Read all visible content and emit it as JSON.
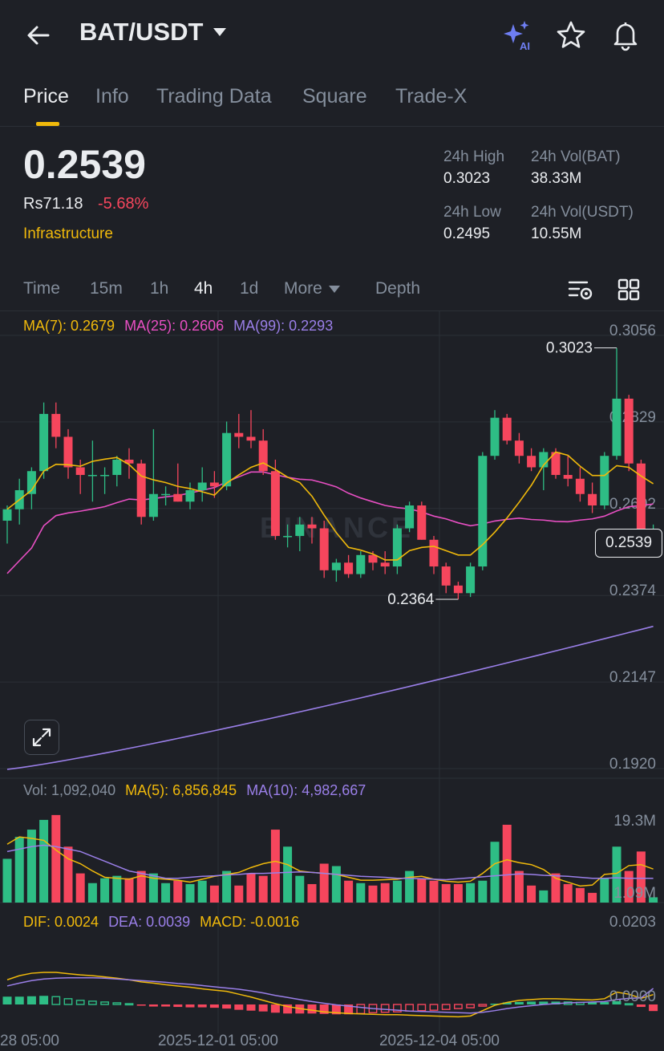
{
  "header": {
    "pair": "BAT/USDT"
  },
  "tabs": [
    {
      "label": "Price",
      "active": true
    },
    {
      "label": "Info",
      "active": false
    },
    {
      "label": "Trading Data",
      "active": false
    },
    {
      "label": "Square",
      "active": false
    },
    {
      "label": "Trade-X",
      "active": false
    }
  ],
  "price": {
    "last": "0.2539",
    "fiat": "Rs71.18",
    "change_pct": "-5.68%",
    "category": "Infrastructure"
  },
  "stats": {
    "high_label": "24h High",
    "high_value": "0.3023",
    "vol_base_label": "24h Vol(BAT)",
    "vol_base_value": "38.33M",
    "low_label": "24h Low",
    "low_value": "0.2495",
    "vol_quote_label": "24h Vol(USDT)",
    "vol_quote_value": "10.55M"
  },
  "intervals": {
    "time": "Time",
    "m15": "15m",
    "h1": "1h",
    "h4": "4h",
    "d1": "1d",
    "more": "More",
    "depth": "Depth",
    "active": "4h"
  },
  "ma_legend": {
    "ma7": "MA(7): 0.2679",
    "ma25": "MA(25): 0.2606",
    "ma99": "MA(99): 0.2293"
  },
  "vol_legend": {
    "vol": "Vol: 1,092,040",
    "ma5": "MA(5): 6,856,845",
    "ma10": "MA(10): 4,982,667"
  },
  "macd_legend": {
    "dif": "DIF: 0.0024",
    "dea": "DEA: 0.0039",
    "macd": "MACD: -0.0016"
  },
  "current_price_label": "0.2539",
  "colors": {
    "up": "#2ebd85",
    "down": "#f6465d",
    "ma7": "#f0b90b",
    "ma25": "#e84fc3",
    "ma99": "#9a7fe8",
    "accent": "#f0b90b"
  },
  "chart_data": {
    "type": "candlestick",
    "price_axis": [
      "0.3056",
      "0.2829",
      "0.2602",
      "0.2374",
      "0.2147",
      "0.1920"
    ],
    "price_range": [
      0.192,
      0.3056
    ],
    "high_marker": "0.3023",
    "low_marker": "0.2364",
    "watermark": "BINANCE",
    "volume_axis": [
      "19.3M",
      "1.09M"
    ],
    "volume_range_millions": [
      0,
      19.3
    ],
    "macd_axis": [
      "0.0203",
      "0.0000"
    ],
    "x_labels": [
      "28 05:00",
      "2025-12-01 05:00",
      "2025-12-04 05:00"
    ],
    "candles": [
      {
        "o": 0.257,
        "h": 0.261,
        "l": 0.251,
        "c": 0.26
      },
      {
        "o": 0.26,
        "h": 0.268,
        "l": 0.256,
        "c": 0.265
      },
      {
        "o": 0.264,
        "h": 0.271,
        "l": 0.26,
        "c": 0.27
      },
      {
        "o": 0.27,
        "h": 0.288,
        "l": 0.268,
        "c": 0.285
      },
      {
        "o": 0.285,
        "h": 0.288,
        "l": 0.276,
        "c": 0.279
      },
      {
        "o": 0.279,
        "h": 0.281,
        "l": 0.268,
        "c": 0.271
      },
      {
        "o": 0.271,
        "h": 0.273,
        "l": 0.264,
        "c": 0.269
      },
      {
        "o": 0.269,
        "h": 0.278,
        "l": 0.262,
        "c": 0.269
      },
      {
        "o": 0.269,
        "h": 0.271,
        "l": 0.264,
        "c": 0.269
      },
      {
        "o": 0.269,
        "h": 0.274,
        "l": 0.266,
        "c": 0.273
      },
      {
        "o": 0.273,
        "h": 0.276,
        "l": 0.268,
        "c": 0.272
      },
      {
        "o": 0.272,
        "h": 0.273,
        "l": 0.256,
        "c": 0.258
      },
      {
        "o": 0.258,
        "h": 0.281,
        "l": 0.257,
        "c": 0.264
      },
      {
        "o": 0.264,
        "h": 0.266,
        "l": 0.261,
        "c": 0.264
      },
      {
        "o": 0.264,
        "h": 0.272,
        "l": 0.262,
        "c": 0.262
      },
      {
        "o": 0.262,
        "h": 0.267,
        "l": 0.26,
        "c": 0.265
      },
      {
        "o": 0.265,
        "h": 0.271,
        "l": 0.262,
        "c": 0.267
      },
      {
        "o": 0.267,
        "h": 0.27,
        "l": 0.263,
        "c": 0.266
      },
      {
        "o": 0.266,
        "h": 0.283,
        "l": 0.265,
        "c": 0.28
      },
      {
        "o": 0.28,
        "h": 0.285,
        "l": 0.276,
        "c": 0.279
      },
      {
        "o": 0.279,
        "h": 0.286,
        "l": 0.276,
        "c": 0.278
      },
      {
        "o": 0.278,
        "h": 0.281,
        "l": 0.269,
        "c": 0.27
      },
      {
        "o": 0.27,
        "h": 0.273,
        "l": 0.252,
        "c": 0.253
      },
      {
        "o": 0.253,
        "h": 0.256,
        "l": 0.25,
        "c": 0.253
      },
      {
        "o": 0.253,
        "h": 0.258,
        "l": 0.249,
        "c": 0.256
      },
      {
        "o": 0.256,
        "h": 0.258,
        "l": 0.251,
        "c": 0.255
      },
      {
        "o": 0.255,
        "h": 0.257,
        "l": 0.242,
        "c": 0.244
      },
      {
        "o": 0.244,
        "h": 0.247,
        "l": 0.241,
        "c": 0.246
      },
      {
        "o": 0.246,
        "h": 0.248,
        "l": 0.242,
        "c": 0.243
      },
      {
        "o": 0.243,
        "h": 0.249,
        "l": 0.242,
        "c": 0.248
      },
      {
        "o": 0.248,
        "h": 0.249,
        "l": 0.244,
        "c": 0.246
      },
      {
        "o": 0.246,
        "h": 0.249,
        "l": 0.243,
        "c": 0.245
      },
      {
        "o": 0.245,
        "h": 0.256,
        "l": 0.243,
        "c": 0.255
      },
      {
        "o": 0.255,
        "h": 0.262,
        "l": 0.254,
        "c": 0.261
      },
      {
        "o": 0.261,
        "h": 0.262,
        "l": 0.252,
        "c": 0.252
      },
      {
        "o": 0.252,
        "h": 0.253,
        "l": 0.243,
        "c": 0.245
      },
      {
        "o": 0.245,
        "h": 0.246,
        "l": 0.238,
        "c": 0.24
      },
      {
        "o": 0.24,
        "h": 0.241,
        "l": 0.2364,
        "c": 0.238
      },
      {
        "o": 0.238,
        "h": 0.246,
        "l": 0.237,
        "c": 0.245
      },
      {
        "o": 0.245,
        "h": 0.275,
        "l": 0.244,
        "c": 0.274
      },
      {
        "o": 0.274,
        "h": 0.286,
        "l": 0.273,
        "c": 0.284
      },
      {
        "o": 0.284,
        "h": 0.285,
        "l": 0.277,
        "c": 0.278
      },
      {
        "o": 0.278,
        "h": 0.28,
        "l": 0.272,
        "c": 0.274
      },
      {
        "o": 0.274,
        "h": 0.276,
        "l": 0.27,
        "c": 0.271
      },
      {
        "o": 0.271,
        "h": 0.276,
        "l": 0.265,
        "c": 0.275
      },
      {
        "o": 0.275,
        "h": 0.276,
        "l": 0.268,
        "c": 0.269
      },
      {
        "o": 0.269,
        "h": 0.274,
        "l": 0.266,
        "c": 0.268
      },
      {
        "o": 0.268,
        "h": 0.271,
        "l": 0.262,
        "c": 0.264
      },
      {
        "o": 0.264,
        "h": 0.267,
        "l": 0.259,
        "c": 0.261
      },
      {
        "o": 0.261,
        "h": 0.275,
        "l": 0.26,
        "c": 0.274
      },
      {
        "o": 0.274,
        "h": 0.3023,
        "l": 0.273,
        "c": 0.289
      },
      {
        "o": 0.289,
        "h": 0.29,
        "l": 0.27,
        "c": 0.272
      },
      {
        "o": 0.272,
        "h": 0.273,
        "l": 0.251,
        "c": 0.253
      },
      {
        "o": 0.253,
        "h": 0.256,
        "l": 0.252,
        "c": 0.2539
      }
    ],
    "volume_millions": [
      9.0,
      13.5,
      15.0,
      17.0,
      18.0,
      11.5,
      6.0,
      4.0,
      5.0,
      5.5,
      5.0,
      6.5,
      6.0,
      4.0,
      4.5,
      3.8,
      4.5,
      3.5,
      6.5,
      3.5,
      6.0,
      5.5,
      15.0,
      11.5,
      5.5,
      3.8,
      8.0,
      7.5,
      4.5,
      4.0,
      3.5,
      4.0,
      4.5,
      6.5,
      5.0,
      4.5,
      3.8,
      3.8,
      4.0,
      4.5,
      12.5,
      16.0,
      6.5,
      3.5,
      2.5,
      6.0,
      3.8,
      3.0,
      2.0,
      5.0,
      11.5,
      6.5,
      10.5,
      1.09
    ],
    "ma5_volume_millions": [
      12.0,
      13.5,
      13.2,
      12.8,
      10.8,
      9.0,
      8.0,
      6.5,
      5.2,
      5.0,
      4.8,
      5.5,
      5.0,
      4.8,
      4.6,
      4.2,
      4.8,
      5.4,
      5.8,
      6.2,
      7.2,
      8.0,
      8.5,
      7.8,
      6.5,
      6.2,
      6.0,
      5.8,
      5.2,
      4.6,
      4.6,
      4.7,
      4.8,
      5.2,
      5.4,
      4.8,
      4.4,
      4.2,
      4.4,
      6.0,
      8.0,
      8.8,
      8.2,
      7.8,
      6.8,
      5.0,
      4.2,
      3.4,
      3.6,
      5.8,
      6.0,
      7.6,
      7.8,
      6.9
    ],
    "ma10_volume_millions": [
      10.5,
      11.0,
      11.5,
      11.8,
      11.5,
      11.0,
      10.5,
      9.5,
      8.5,
      7.5,
      6.5,
      6.0,
      5.5,
      5.0,
      5.0,
      5.2,
      5.4,
      5.5,
      5.7,
      5.8,
      6.0,
      6.0,
      6.1,
      6.2,
      6.3,
      6.2,
      6.0,
      5.8,
      5.6,
      5.4,
      5.3,
      5.2,
      5.0,
      5.0,
      4.9,
      4.8,
      4.7,
      4.9,
      5.1,
      5.3,
      5.5,
      5.7,
      5.9,
      5.8,
      5.6,
      5.5,
      5.4,
      5.2,
      5.0,
      5.0,
      5.1,
      5.0,
      5.0,
      4.98
    ],
    "macd_hist": [
      0.0019,
      0.0019,
      0.002,
      0.0021,
      0.0019,
      0.0014,
      0.001,
      0.0008,
      0.0006,
      0.0004,
      0.0002,
      -0.0002,
      -0.0005,
      -0.0005,
      -0.0006,
      -0.0007,
      -0.0007,
      -0.0008,
      -0.001,
      -0.0013,
      -0.0015,
      -0.0017,
      -0.002,
      -0.0022,
      -0.0022,
      -0.0022,
      -0.0023,
      -0.0024,
      -0.0024,
      -0.0022,
      -0.002,
      -0.0019,
      -0.0018,
      -0.0016,
      -0.0015,
      -0.0014,
      -0.0012,
      -0.001,
      -0.0008,
      -0.0004,
      0.0002,
      0.0005,
      0.0006,
      0.0007,
      0.0007,
      0.0007,
      0.0006,
      0.0005,
      0.0005,
      0.0006,
      0.0008,
      0.0002,
      -0.0006,
      -0.0016
    ],
    "dif": [
      0.006,
      0.007,
      0.0076,
      0.0078,
      0.0078,
      0.0075,
      0.0072,
      0.007,
      0.0067,
      0.0064,
      0.006,
      0.0055,
      0.0052,
      0.0048,
      0.0045,
      0.0042,
      0.0038,
      0.0035,
      0.0032,
      0.0025,
      0.0018,
      0.001,
      0.0002,
      -0.0005,
      -0.001,
      -0.0014,
      -0.0018,
      -0.002,
      -0.0022,
      -0.0023,
      -0.0024,
      -0.0025,
      -0.0025,
      -0.0026,
      -0.0027,
      -0.0028,
      -0.0029,
      -0.003,
      -0.0028,
      -0.0015,
      -0.0002,
      0.0005,
      0.001,
      0.0012,
      0.0014,
      0.0014,
      0.0013,
      0.0012,
      0.0011,
      0.0014,
      0.003,
      0.0025,
      0.0015,
      0.0024
    ],
    "dea": [
      0.0045,
      0.0052,
      0.0058,
      0.0062,
      0.0064,
      0.0065,
      0.0065,
      0.0065,
      0.0064,
      0.0062,
      0.006,
      0.0058,
      0.0056,
      0.0054,
      0.0051,
      0.0049,
      0.0046,
      0.0043,
      0.004,
      0.0037,
      0.0033,
      0.0028,
      0.0022,
      0.0017,
      0.0012,
      0.0007,
      0.0003,
      -0.0001,
      -0.0004,
      -0.0007,
      -0.001,
      -0.0012,
      -0.0014,
      -0.0016,
      -0.0017,
      -0.0018,
      -0.0019,
      -0.002,
      -0.0021,
      -0.0019,
      -0.0015,
      -0.001,
      -0.0006,
      -0.0003,
      0.0,
      0.0002,
      0.0004,
      0.0005,
      0.0006,
      0.0007,
      0.0012,
      0.0015,
      0.0016,
      0.0039
    ]
  }
}
